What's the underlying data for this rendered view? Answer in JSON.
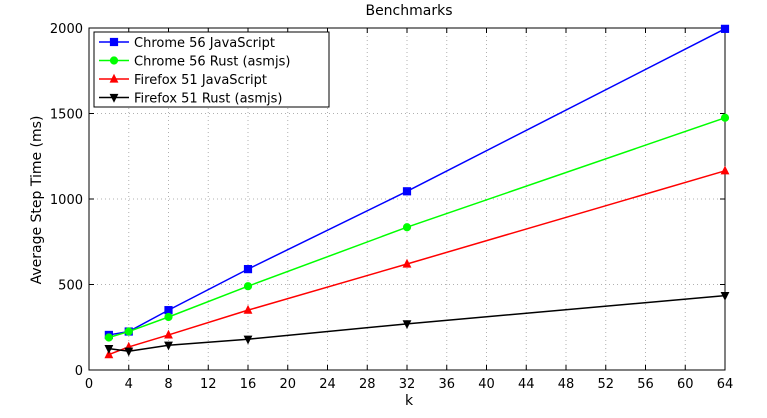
{
  "chart_data": {
    "type": "line",
    "title": "Benchmarks",
    "xlabel": "k",
    "ylabel": "Average Step Time (ms)",
    "xlim": [
      0,
      64
    ],
    "ylim": [
      0,
      2000
    ],
    "xticks": [
      0,
      4,
      8,
      12,
      16,
      20,
      24,
      28,
      32,
      36,
      40,
      44,
      48,
      52,
      56,
      60,
      64
    ],
    "yticks": [
      0,
      500,
      1000,
      1500,
      2000
    ],
    "grid": true,
    "legend_position": "top-left",
    "series": [
      {
        "name": "Chrome 56 JavaScript",
        "color": "#0000ff",
        "marker": "square",
        "x": [
          2,
          4,
          8,
          16,
          32,
          64
        ],
        "y": [
          205,
          225,
          350,
          590,
          1045,
          1995
        ]
      },
      {
        "name": "Chrome 56 Rust (asmjs)",
        "color": "#00ff00",
        "marker": "circle",
        "x": [
          2,
          4,
          8,
          16,
          32,
          64
        ],
        "y": [
          190,
          225,
          310,
          490,
          835,
          1475
        ]
      },
      {
        "name": "Firefox 51 JavaScript",
        "color": "#ff0000",
        "marker": "triangle-up",
        "x": [
          2,
          4,
          8,
          16,
          32,
          64
        ],
        "y": [
          90,
          135,
          205,
          350,
          620,
          1165
        ]
      },
      {
        "name": "Firefox 51 Rust (asmjs)",
        "color": "#000000",
        "marker": "triangle-down",
        "x": [
          2,
          4,
          8,
          16,
          32,
          64
        ],
        "y": [
          125,
          110,
          145,
          180,
          270,
          435
        ]
      }
    ]
  }
}
